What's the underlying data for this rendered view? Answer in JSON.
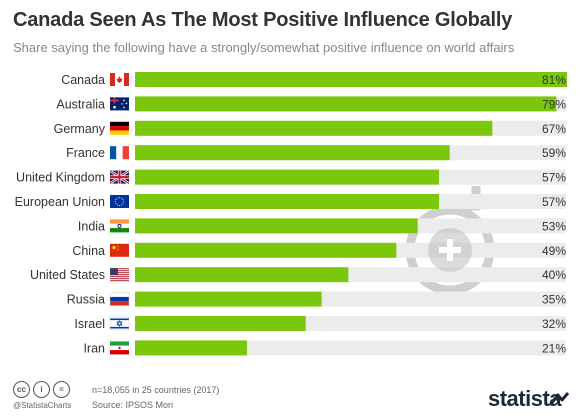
{
  "title": "Canada Seen As The Most Positive Influence Globally",
  "subtitle": "Share saying the following have a strongly/somewhat positive influence on world affairs",
  "chart_data": {
    "type": "bar",
    "orientation": "horizontal",
    "categories": [
      "Canada",
      "Australia",
      "Germany",
      "France",
      "United Kingdom",
      "European Union",
      "India",
      "China",
      "United States",
      "Russia",
      "Israel",
      "Iran"
    ],
    "values": [
      81,
      79,
      67,
      59,
      57,
      57,
      53,
      49,
      40,
      35,
      32,
      21
    ],
    "value_labels": [
      "81%",
      "79%",
      "67%",
      "59%",
      "57%",
      "57%",
      "53%",
      "49%",
      "40%",
      "35%",
      "32%",
      "21%"
    ],
    "unit": "%",
    "xlim": [
      0,
      100
    ],
    "bar_color": "#7ac70c",
    "track_color": "#ececec",
    "grid": false,
    "legend": "none"
  },
  "flags": [
    "flag-canada-icon",
    "flag-australia-icon",
    "flag-germany-icon",
    "flag-france-icon",
    "flag-uk-icon",
    "flag-eu-icon",
    "flag-india-icon",
    "flag-china-icon",
    "flag-usa-icon",
    "flag-russia-icon",
    "flag-israel-icon",
    "flag-iran-icon"
  ],
  "footer": {
    "note": "n=18,055 in 25 countries (2017)",
    "source": "Source: IPSOS Mori",
    "handle": "@StatistaCharts",
    "logo": "statista"
  }
}
